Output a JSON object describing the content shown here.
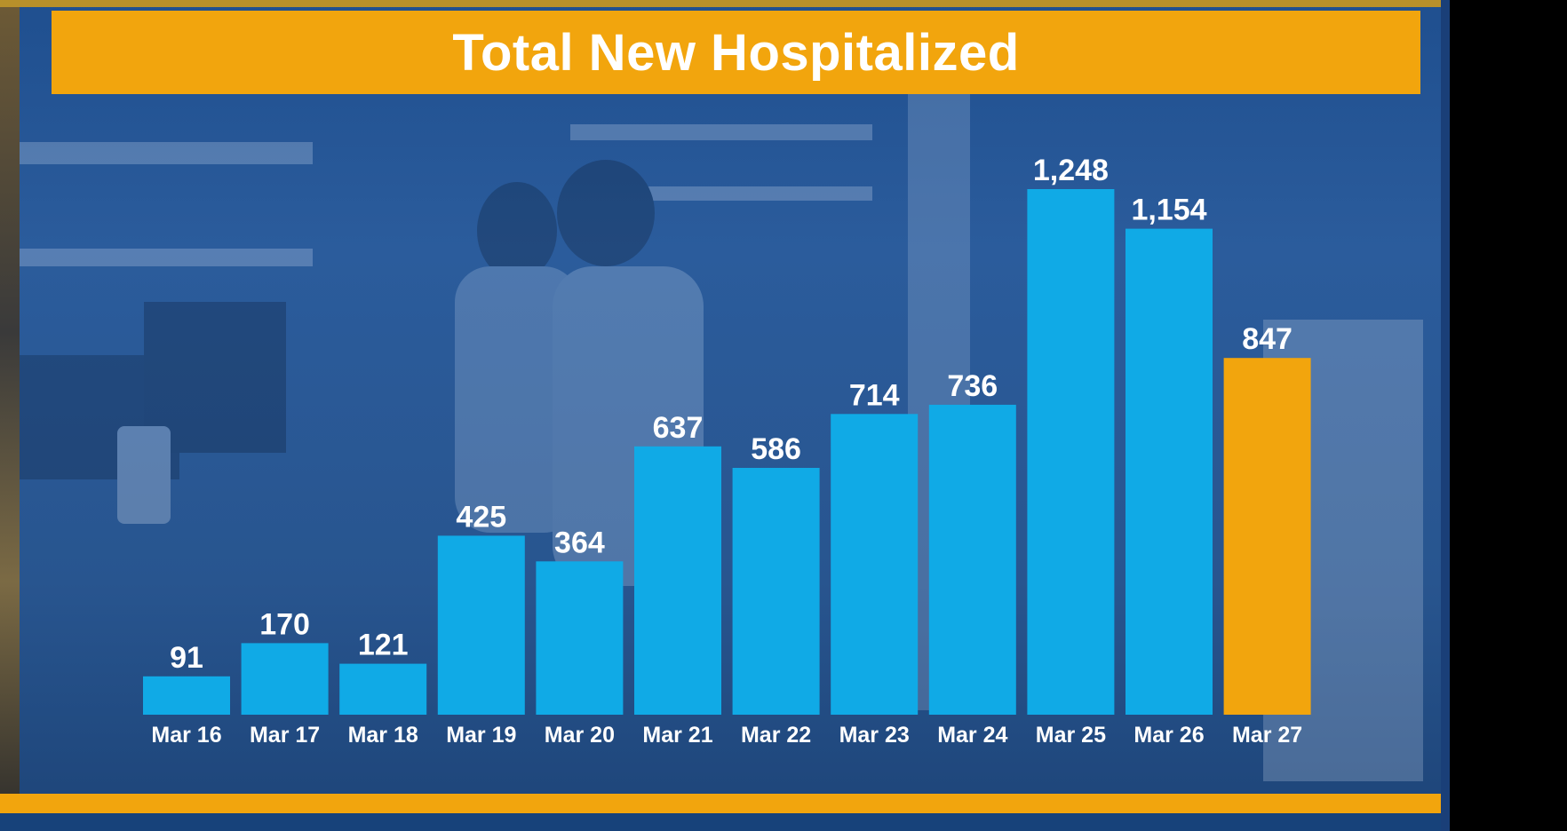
{
  "chart_data": {
    "type": "bar",
    "title": "Total New Hospitalized",
    "categories": [
      "Mar 16",
      "Mar 17",
      "Mar 18",
      "Mar 19",
      "Mar 20",
      "Mar 21",
      "Mar 22",
      "Mar 23",
      "Mar 24",
      "Mar 25",
      "Mar 26",
      "Mar 27"
    ],
    "values": [
      91,
      170,
      121,
      425,
      364,
      637,
      586,
      714,
      736,
      1248,
      1154,
      847
    ],
    "value_labels": [
      "91",
      "170",
      "121",
      "425",
      "364",
      "637",
      "586",
      "714",
      "736",
      "1,248",
      "1,154",
      "847"
    ],
    "highlight_index": 11,
    "xlabel": "",
    "ylabel": "",
    "ylim": [
      0,
      1248
    ],
    "grid": false,
    "legend": "none",
    "colors": {
      "bar": "#10aae6",
      "highlight": "#f2a50d"
    }
  }
}
